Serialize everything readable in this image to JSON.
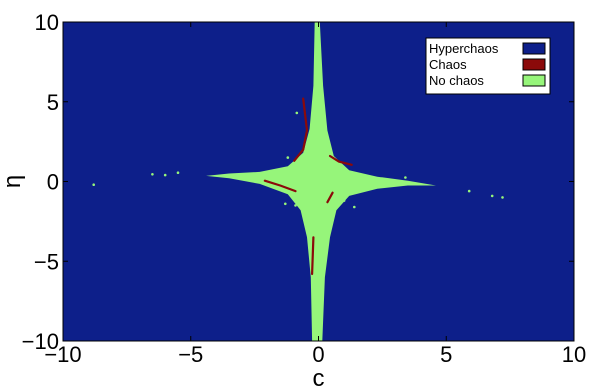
{
  "chart_data": {
    "type": "heatmap",
    "title": "",
    "xlabel": "c",
    "ylabel": "η",
    "xlim": [
      -10,
      10
    ],
    "ylim": [
      -10,
      10
    ],
    "xticks": [
      "−10",
      "−5",
      "0",
      "5",
      "10"
    ],
    "yticks": [
      "10",
      "5",
      "0",
      "−5",
      "−10"
    ],
    "xtick_values": [
      -10,
      -5,
      0,
      5,
      10
    ],
    "ytick_values": [
      10,
      5,
      0,
      -5,
      -10
    ],
    "grid": false,
    "legend_position": "top-right",
    "categories": [
      {
        "name": "Hyperchaos",
        "color": "#0d1f8a"
      },
      {
        "name": "Chaos",
        "color": "#8b0a0a"
      },
      {
        "name": "No chaos",
        "color": "#96f57a"
      }
    ],
    "background_category": "Hyperchaos",
    "regions": [
      {
        "category": "No chaos",
        "description": "four-armed star centered at (0,0)",
        "arm_tips": [
          [
            -4.3,
            0.3
          ],
          [
            4.5,
            -0.3
          ],
          [
            0,
            10
          ],
          [
            0,
            -10
          ]
        ]
      },
      {
        "category": "Chaos",
        "description": "thin filaments along edges of star arms near origin"
      }
    ]
  }
}
